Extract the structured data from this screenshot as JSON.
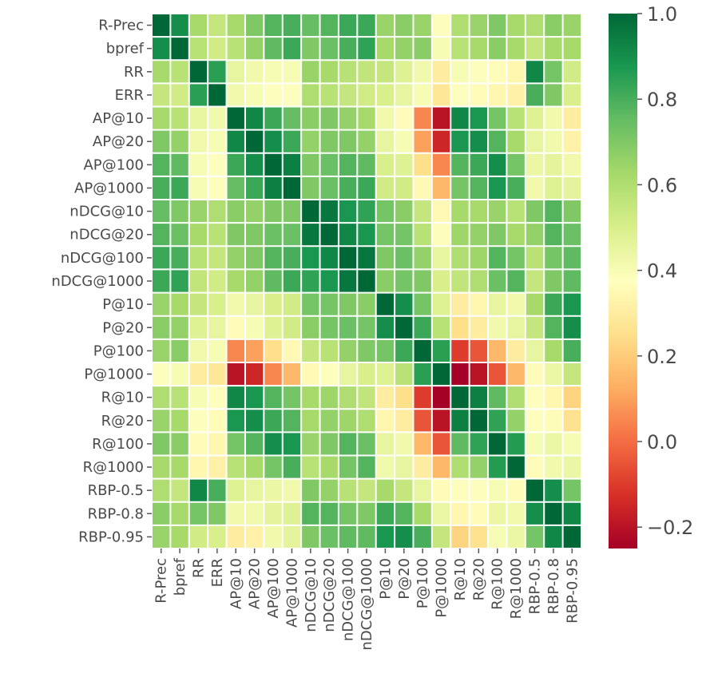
{
  "chart_data": {
    "type": "heatmap",
    "labels": [
      "R-Prec",
      "bpref",
      "RR",
      "ERR",
      "AP@10",
      "AP@20",
      "AP@100",
      "AP@1000",
      "nDCG@10",
      "nDCG@20",
      "nDCG@100",
      "nDCG@1000",
      "P@10",
      "P@20",
      "P@100",
      "P@1000",
      "R@10",
      "R@20",
      "R@100",
      "R@1000",
      "RBP-0.5",
      "RBP-0.8",
      "RBP-0.95"
    ],
    "colorbar": {
      "min": -0.25,
      "max": 1.0,
      "ticks": [
        1.0,
        0.8,
        0.6,
        0.4,
        0.2,
        0.0,
        -0.2
      ],
      "tick_labels": [
        "1.0",
        "0.8",
        "0.6",
        "0.4",
        "0.2",
        "0.0",
        "−0.2"
      ],
      "colormap": "RdYlGn"
    },
    "grid": true,
    "values": [
      [
        1.0,
        0.9,
        0.62,
        0.55,
        0.62,
        0.7,
        0.78,
        0.8,
        0.75,
        0.78,
        0.82,
        0.82,
        0.65,
        0.68,
        0.65,
        0.38,
        0.6,
        0.65,
        0.7,
        0.62,
        0.6,
        0.68,
        0.65
      ],
      [
        0.9,
        1.0,
        0.58,
        0.52,
        0.58,
        0.66,
        0.76,
        0.82,
        0.7,
        0.74,
        0.8,
        0.84,
        0.62,
        0.66,
        0.68,
        0.4,
        0.58,
        0.62,
        0.68,
        0.62,
        0.55,
        0.62,
        0.62
      ],
      [
        0.62,
        0.58,
        1.0,
        0.85,
        0.45,
        0.42,
        0.4,
        0.4,
        0.65,
        0.62,
        0.58,
        0.56,
        0.55,
        0.48,
        0.42,
        0.3,
        0.4,
        0.38,
        0.36,
        0.34,
        0.92,
        0.72,
        0.52
      ],
      [
        0.55,
        0.52,
        0.85,
        1.0,
        0.42,
        0.4,
        0.38,
        0.38,
        0.6,
        0.58,
        0.55,
        0.52,
        0.5,
        0.45,
        0.4,
        0.28,
        0.38,
        0.36,
        0.34,
        0.32,
        0.8,
        0.7,
        0.5
      ],
      [
        0.62,
        0.58,
        0.45,
        0.42,
        1.0,
        0.92,
        0.82,
        0.75,
        0.68,
        0.7,
        0.66,
        0.62,
        0.42,
        0.36,
        0.05,
        -0.2,
        0.92,
        0.88,
        0.72,
        0.58,
        0.48,
        0.42,
        0.3
      ],
      [
        0.7,
        0.66,
        0.42,
        0.4,
        0.92,
        1.0,
        0.9,
        0.82,
        0.66,
        0.7,
        0.7,
        0.66,
        0.45,
        0.4,
        0.1,
        -0.15,
        0.88,
        0.9,
        0.78,
        0.62,
        0.45,
        0.42,
        0.32
      ],
      [
        0.78,
        0.76,
        0.4,
        0.38,
        0.82,
        0.9,
        1.0,
        0.94,
        0.7,
        0.74,
        0.78,
        0.76,
        0.5,
        0.48,
        0.25,
        0.05,
        0.78,
        0.82,
        0.9,
        0.72,
        0.44,
        0.46,
        0.42
      ],
      [
        0.8,
        0.82,
        0.4,
        0.38,
        0.75,
        0.82,
        0.94,
        1.0,
        0.7,
        0.74,
        0.8,
        0.82,
        0.52,
        0.52,
        0.35,
        0.15,
        0.72,
        0.78,
        0.88,
        0.8,
        0.42,
        0.48,
        0.46
      ],
      [
        0.75,
        0.7,
        0.65,
        0.6,
        0.68,
        0.66,
        0.7,
        0.7,
        1.0,
        0.96,
        0.88,
        0.84,
        0.72,
        0.68,
        0.55,
        0.35,
        0.62,
        0.62,
        0.65,
        0.58,
        0.7,
        0.78,
        0.7
      ],
      [
        0.78,
        0.74,
        0.62,
        0.58,
        0.7,
        0.7,
        0.74,
        0.74,
        0.96,
        1.0,
        0.92,
        0.88,
        0.72,
        0.72,
        0.58,
        0.38,
        0.64,
        0.66,
        0.7,
        0.62,
        0.66,
        0.78,
        0.74
      ],
      [
        0.82,
        0.8,
        0.58,
        0.55,
        0.66,
        0.7,
        0.78,
        0.8,
        0.88,
        0.92,
        1.0,
        0.96,
        0.7,
        0.74,
        0.66,
        0.45,
        0.6,
        0.64,
        0.78,
        0.72,
        0.58,
        0.72,
        0.76
      ],
      [
        0.82,
        0.84,
        0.56,
        0.52,
        0.62,
        0.66,
        0.76,
        0.82,
        0.84,
        0.88,
        0.96,
        1.0,
        0.68,
        0.72,
        0.7,
        0.5,
        0.56,
        0.6,
        0.74,
        0.78,
        0.55,
        0.7,
        0.76
      ],
      [
        0.65,
        0.62,
        0.55,
        0.5,
        0.42,
        0.45,
        0.5,
        0.52,
        0.72,
        0.72,
        0.7,
        0.68,
        1.0,
        0.9,
        0.72,
        0.48,
        0.3,
        0.34,
        0.45,
        0.42,
        0.62,
        0.82,
        0.88
      ],
      [
        0.68,
        0.66,
        0.48,
        0.45,
        0.36,
        0.4,
        0.48,
        0.52,
        0.68,
        0.72,
        0.74,
        0.72,
        0.9,
        1.0,
        0.82,
        0.58,
        0.25,
        0.3,
        0.42,
        0.45,
        0.55,
        0.78,
        0.9
      ],
      [
        0.65,
        0.68,
        0.42,
        0.4,
        0.05,
        0.1,
        0.25,
        0.35,
        0.55,
        0.58,
        0.66,
        0.7,
        0.72,
        0.82,
        1.0,
        0.85,
        -0.1,
        -0.05,
        0.15,
        0.3,
        0.45,
        0.62,
        0.8
      ],
      [
        0.38,
        0.4,
        0.3,
        0.28,
        -0.2,
        -0.15,
        0.05,
        0.15,
        0.35,
        0.38,
        0.45,
        0.5,
        0.48,
        0.58,
        0.85,
        1.0,
        -0.25,
        -0.2,
        -0.05,
        0.15,
        0.36,
        0.44,
        0.55
      ],
      [
        0.6,
        0.58,
        0.4,
        0.38,
        0.92,
        0.88,
        0.78,
        0.72,
        0.62,
        0.64,
        0.6,
        0.56,
        0.3,
        0.25,
        -0.1,
        -0.25,
        1.0,
        0.94,
        0.76,
        0.6,
        0.38,
        0.34,
        0.22
      ],
      [
        0.65,
        0.62,
        0.38,
        0.36,
        0.88,
        0.9,
        0.82,
        0.78,
        0.62,
        0.66,
        0.64,
        0.6,
        0.34,
        0.3,
        -0.05,
        -0.2,
        0.94,
        1.0,
        0.84,
        0.66,
        0.38,
        0.36,
        0.26
      ],
      [
        0.7,
        0.68,
        0.36,
        0.34,
        0.72,
        0.78,
        0.9,
        0.88,
        0.65,
        0.7,
        0.78,
        0.74,
        0.45,
        0.42,
        0.15,
        -0.05,
        0.76,
        0.84,
        1.0,
        0.86,
        0.4,
        0.44,
        0.4
      ],
      [
        0.62,
        0.62,
        0.34,
        0.32,
        0.58,
        0.62,
        0.72,
        0.8,
        0.58,
        0.62,
        0.72,
        0.78,
        0.42,
        0.45,
        0.3,
        0.15,
        0.6,
        0.66,
        0.86,
        1.0,
        0.36,
        0.42,
        0.44
      ],
      [
        0.6,
        0.55,
        0.92,
        0.8,
        0.48,
        0.45,
        0.44,
        0.42,
        0.7,
        0.66,
        0.58,
        0.55,
        0.62,
        0.55,
        0.45,
        0.36,
        0.38,
        0.38,
        0.4,
        0.36,
        1.0,
        0.9,
        0.72
      ],
      [
        0.68,
        0.62,
        0.72,
        0.7,
        0.42,
        0.42,
        0.46,
        0.48,
        0.78,
        0.78,
        0.72,
        0.7,
        0.82,
        0.78,
        0.62,
        0.44,
        0.34,
        0.36,
        0.44,
        0.42,
        0.9,
        1.0,
        0.92
      ],
      [
        0.65,
        0.62,
        0.52,
        0.5,
        0.3,
        0.32,
        0.42,
        0.46,
        0.7,
        0.74,
        0.76,
        0.76,
        0.88,
        0.9,
        0.8,
        0.55,
        0.22,
        0.26,
        0.4,
        0.44,
        0.72,
        0.92,
        1.0
      ]
    ]
  }
}
